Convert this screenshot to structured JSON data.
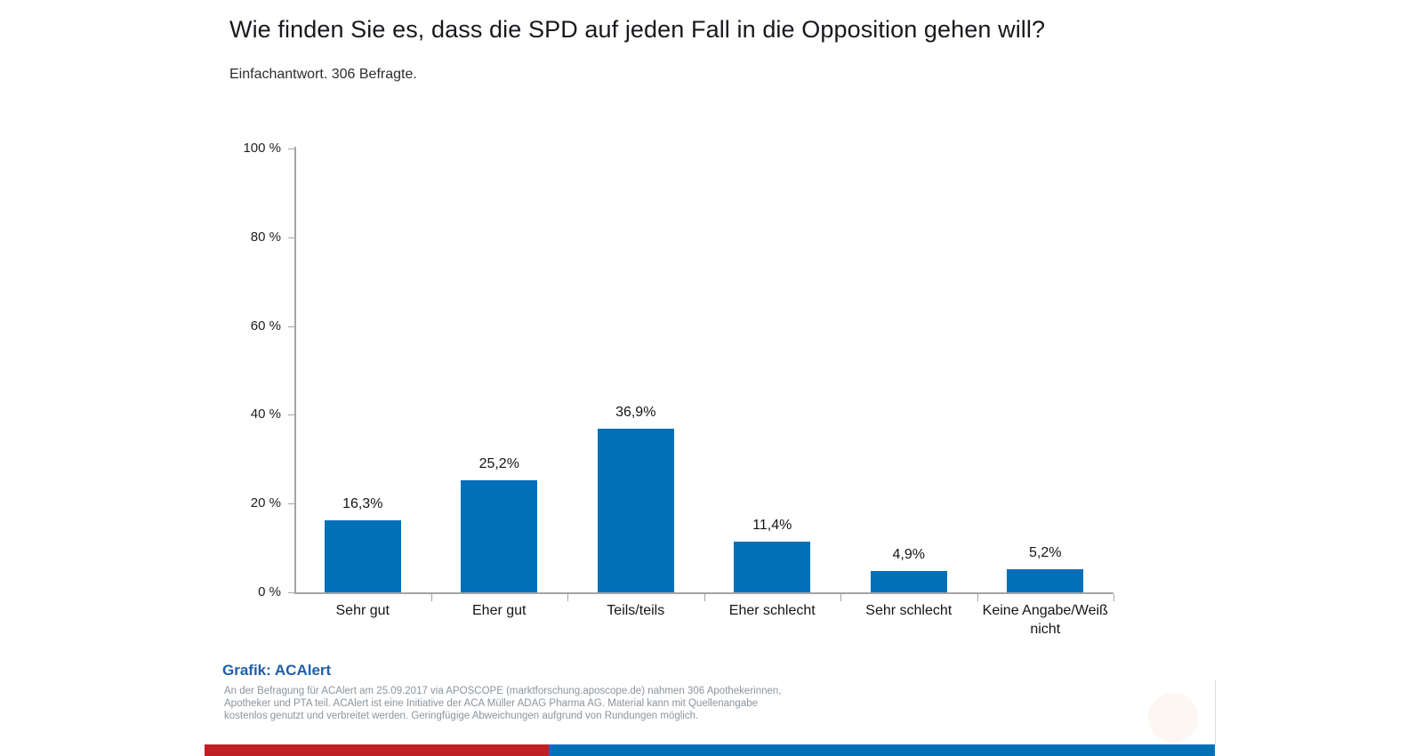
{
  "page": {
    "title": "Wie finden Sie es, dass die SPD auf jeden Fall in die Opposition gehen will?",
    "subtitle": "Einfachantwort. 306 Befragte."
  },
  "chart_data": {
    "type": "bar",
    "title": "Wie finden Sie es, dass die SPD auf jeden Fall in die Opposition gehen will?",
    "subtitle": "Einfachantwort. 306 Befragte.",
    "categories": [
      "Sehr gut",
      "Eher gut",
      "Teils/teils",
      "Eher schlecht",
      "Sehr schlecht",
      "Keine Angabe/Weiß nicht"
    ],
    "values": [
      16.3,
      25.2,
      36.9,
      11.4,
      4.9,
      5.2
    ],
    "value_labels": [
      "16,3%",
      "25,2%",
      "36,9%",
      "11,4%",
      "4,9%",
      "5,2%"
    ],
    "xlabel": "",
    "ylabel": "",
    "ylim": [
      0,
      100
    ],
    "ytick_step": 20,
    "ytick_suffix": " %",
    "grid": false,
    "legend": false,
    "bar_color": "#0070b9",
    "axis_color": "#a4a4a4"
  },
  "footer": {
    "credit": "Grafik: ACAlert",
    "lines": [
      "An der Befragung für ACAlert am 25.09.2017 via APOSCOPE (marktforschung.aposcope.de) nahmen 306 Apothekerinnen,",
      "Apotheker und PTA teil. ACAlert ist eine Initiative der ACA Müller ADAG Pharma AG. Material kann mit Quellenangabe",
      "kostenlos genutzt und verbreitet werden. Geringfügige Abweichungen aufgrund von Rundungen möglich."
    ]
  },
  "decor": {
    "strip_red": "#bf2026",
    "strip_blue": "#0070b9"
  }
}
